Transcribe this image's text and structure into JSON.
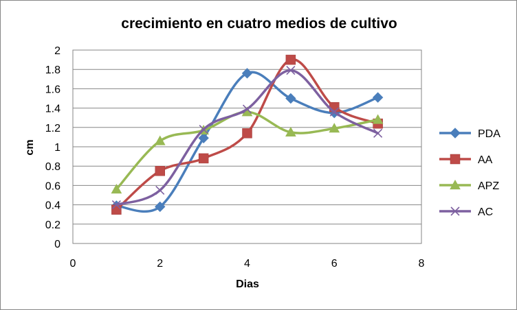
{
  "chart_data": {
    "type": "line",
    "title": "crecimiento en cuatro medios de cultivo",
    "xlabel": "Dias",
    "ylabel": "cm",
    "xlim": [
      0,
      8
    ],
    "ylim": [
      0,
      2
    ],
    "xticks": [
      "0",
      "2",
      "4",
      "6",
      "8"
    ],
    "yticks": [
      "0",
      "0.2",
      "0.4",
      "0.6",
      "0.8",
      "1",
      "1.2",
      "1.4",
      "1.6",
      "1.8",
      "2"
    ],
    "grid": "horizontal",
    "smoothed": true,
    "legend_position": "right",
    "x": [
      1,
      2,
      3,
      4,
      5,
      6,
      7
    ],
    "series": [
      {
        "name": "PDA",
        "color": "#4a7ebb",
        "marker": "diamond",
        "values": [
          0.39,
          0.38,
          1.09,
          1.76,
          1.5,
          1.35,
          1.51
        ]
      },
      {
        "name": "AA",
        "color": "#be4b48",
        "marker": "square",
        "values": [
          0.35,
          0.75,
          0.88,
          1.14,
          1.9,
          1.41,
          1.24
        ]
      },
      {
        "name": "APZ",
        "color": "#98b954",
        "marker": "triangle",
        "values": [
          0.56,
          1.06,
          1.17,
          1.36,
          1.15,
          1.19,
          1.28
        ]
      },
      {
        "name": "AC",
        "color": "#7d60a0",
        "marker": "x",
        "values": [
          0.4,
          0.55,
          1.18,
          1.39,
          1.79,
          1.36,
          1.14
        ]
      }
    ]
  }
}
